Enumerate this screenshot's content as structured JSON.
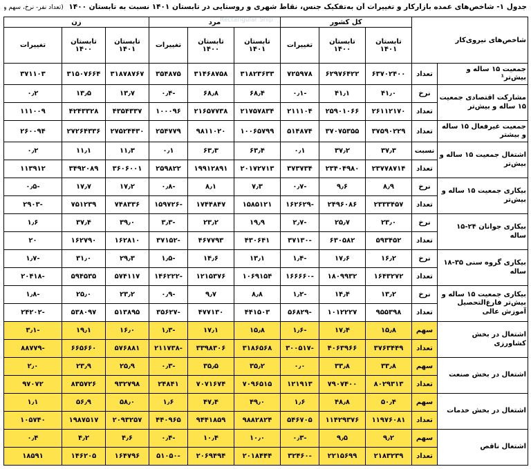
{
  "caption": {
    "title": "جدول ۱- شاخص‌های عمده بازارکار و تغییرات آن به‌تفکیک جنس، نقاط شهری و روستایی در تابستان ۱۴۰۱ نسبت به تابستان ۱۴۰۰",
    "unit": "(تعداد نفر- نرخ، سهم و نسبت: درصد)"
  },
  "watermark": "Rectangular Snip",
  "header": {
    "indicator": "شاخص‌های نیروی‌کار",
    "groups": [
      "کل کشور",
      "مرد",
      "زن"
    ],
    "cols": [
      "تابستان ۱۴۰۱",
      "تابستان ۱۴۰۰",
      "تغییرات"
    ]
  },
  "rows": [
    {
      "label": "جمعیت ۱۵ ساله و بیش‌تر¹",
      "units": [
        "تعداد"
      ],
      "values": [
        [
          "۶۳۷۰۲۴۰۰",
          "۶۲۹۷۶۴۲۲",
          "۷۲۵۹۷۸",
          "۳۱۸۲۳۶۳۳",
          "۳۱۴۶۸۷۵۸",
          "۳۵۴۸۷۵",
          "۳۱۸۷۸۷۶۷",
          "۳۱۵۰۷۶۶۴",
          "۳۷۱۱۰۳"
        ]
      ],
      "hl": false
    },
    {
      "label": "مشارکت اقتصادی جمعیت ۱۵ ساله و بیش‌تر",
      "units": [
        "نرخ",
        "تعداد"
      ],
      "values": [
        [
          "۴۱٫۰",
          "۴۱٫۱",
          "-۰٫۱",
          "۶۸٫۴",
          "۶۸٫۸",
          "-۰٫۴",
          "۱۳٫۷",
          "۱۳٫۵",
          "۰٫۲"
        ],
        [
          "۲۶۱۱۲۱۷۰",
          "۲۵۹۰۱۰۶۶",
          "۲۱۱۱۰۴",
          "۲۱۷۵۷۸۳۴",
          "۲۱۶۵۷۷۳۸",
          "۱۰۰۰۹۶",
          "۴۳۵۴۳۳۷",
          "۴۲۴۳۳۲۸",
          "۱۱۱۰۰۹"
        ]
      ],
      "hl": false
    },
    {
      "label": "جمعیت غیرفعال ۱۵ ساله و بیشتر",
      "units": [
        "تعداد"
      ],
      "values": [
        [
          "۳۷۵۹۰۲۲۹",
          "۳۷۰۷۵۳۵۵",
          "۵۱۴۸۷۴",
          "۱۰۰۶۵۷۹۹",
          "۹۸۱۱۰۲۰",
          "۲۵۴۷۷۹",
          "۲۷۵۲۴۴۳۰",
          "۲۷۲۶۴۳۳۶",
          "۲۶۰۰۹۴"
        ]
      ],
      "hl": false
    },
    {
      "label": "اشتغال جمعیت ۱۵ ساله و بیش‌تر",
      "units": [
        "نسبت",
        "تعداد"
      ],
      "values": [
        [
          "۳۷٫۳",
          "۳۷٫۲",
          "۰٫۱",
          "۶۳٫۴",
          "۶۳٫۳",
          "۰٫۱",
          "۱۱٫۳",
          "۱۱٫۱",
          "۰٫۲"
        ],
        [
          "۲۳۷۷۸۷۱۴",
          "۲۳۴۰۴۹۸۰",
          "۳۷۳۷۳۴",
          "۲۰۱۷۲۷۱۳",
          "۱۹۹۱۲۸۹۱",
          "۲۵۹۸۲۲",
          "۳۶۰۶۰۰۱",
          "۳۴۹۲۰۸۹",
          "۱۱۳۹۱۲"
        ]
      ],
      "hl": false
    },
    {
      "label": "بیکاری جمعیت ۱۵ ساله و بیش‌تر",
      "units": [
        "نرخ",
        "تعداد"
      ],
      "values": [
        [
          "۸٫۹",
          "۹٫۶",
          "-۰٫۷",
          "۷٫۳",
          "۸٫۱",
          "-۰٫۸",
          "۱۷٫۲",
          "۱۷٫۷",
          "-۰٫۵"
        ],
        [
          "۲۳۳۳۴۵۷",
          "۲۴۹۶۰۸۶",
          "-۱۶۲۶۲۹",
          "۱۵۸۵۱۲۱",
          "۱۷۴۴۸۴۷",
          "-۱۵۹۷۲۶",
          "۷۴۸۳۳۶",
          "۷۵۱۲۳۹",
          "-۲۹۰۳"
        ]
      ],
      "hl": false
    },
    {
      "label": "بیکاری جوانان ۲۴-۱۵ ساله",
      "units": [
        "نرخ",
        "تعداد"
      ],
      "values": [
        [
          "۲۳٫۰",
          "۲۵٫۷",
          "-۲٫۷",
          "۱۹٫۹",
          "۲۳٫۲",
          "-۳٫۳",
          "۳۹٫۰",
          "۳۷٫۴",
          "۱٫۶"
        ],
        [
          "۵۹۳۴۵۲",
          "۶۳۰۵۸۲",
          "-۳۷۱۳۰",
          "۴۳۰۶۴۱",
          "۴۶۷۷۹۳",
          "-۳۷۱۵۲",
          "۱۶۲۸۱۰",
          "۱۶۲۷۹۰",
          "۲۰"
        ]
      ],
      "hl": false
    },
    {
      "label": "بیکاری گروه سنی ۳۵-۱۸ ساله",
      "units": [
        "نرخ",
        "تعداد"
      ],
      "values": [
        [
          "۱۶٫۲",
          "۱۷٫۶",
          "-۱٫۴",
          "۱۳٫۱",
          "۱۴٫۶",
          "-۱٫۵",
          "۲۹٫۳",
          "۳۱٫۰",
          "-۱٫۷"
        ],
        [
          "۱۶۴۳۲۷۲",
          "۱۸۰۹۹۳۲",
          "-۱۶۶۶۶۰",
          "۱۰۶۹۱۵۴",
          "۱۲۱۵۳۷۶",
          "-۱۴۶۲۲۲",
          "۵۷۴۱۱۷",
          "۵۹۴۵۳۵",
          "-۲۰۴۱۸"
        ]
      ],
      "hl": false
    },
    {
      "label": "بیکاری جمعیت ۱۵ ساله و بیش‌تر فارغ‌التحصیل آموزش عالی",
      "units": [
        "نرخ",
        "تعداد"
      ],
      "values": [
        [
          "۱۳٫۲",
          "۱۴٫۴",
          "-۱٫۲",
          "۸٫۸",
          "۹٫۷",
          "-۰٫۹",
          "۲۳٫۲",
          "۲۵٫۰",
          "-۱٫۸"
        ],
        [
          "۹۵۵۳۹۸",
          "۱۰۱۲۲۲۷",
          "-۵۶۸۲۹",
          "۴۴۱۵۰۳",
          "۴۷۷۱۳۰",
          "-۳۵۶۲۷",
          "۵۱۳۸۹۵",
          "۵۳۸۰۹۷",
          "-۲۴۲۰۲"
        ]
      ],
      "hl": false
    },
    {
      "label": "اشتغال در بخش کشاورزی",
      "units": [
        "سهم",
        "تعداد"
      ],
      "values": [
        [
          "۱۵٫۸",
          "۱۷٫۴",
          "-۱٫۶",
          "۱۵٫۸",
          "۱۷٫۱",
          "-۱٫۳",
          "۱۶٫۰",
          "۱۹٫۱",
          "-۳٫۱"
        ],
        [
          "۳۷۶۳۴۴۹",
          "۴۰۶۳۹۶۶",
          "-۳۰۰۵۱۷",
          "۳۱۸۶۵۶۸",
          "۳۳۹۸۳۰۶",
          "-۲۱۱۷۳۸",
          "۵۷۶۸۸۱",
          "۶۶۵۶۶۰",
          "-۸۸۷۷۹"
        ]
      ],
      "hl": true
    },
    {
      "label": "اشتغال در بخش صنعت",
      "units": [
        "سهم",
        "تعداد"
      ],
      "values": [
        [
          "۳۳٫۸",
          "۳۳٫۸",
          "۰٫۰",
          "۳۵٫۲",
          "۳۵٫۵",
          "-۰٫۳",
          "۲۵٫۹",
          "۲۳٫۹",
          "۲٫۰"
        ],
        [
          "۸۰۲۹۳۱۳",
          "۷۹۰۷۴۰۰",
          "۱۲۱۹۱۳",
          "۷۰۹۶۵۱۵",
          "۷۰۷۱۶۷۴",
          "۲۴۸۴۱",
          "۹۳۲۷۹۸",
          "۸۳۵۷۲۶",
          "۹۷۰۷۲"
        ]
      ],
      "hl": true
    },
    {
      "label": "اشتغال در بخش خدمات",
      "units": [
        "سهم",
        "تعداد"
      ],
      "values": [
        [
          "۵۰٫۴",
          "۴۸٫۸",
          "۱٫۶",
          "۴۹٫۰",
          "۴۷٫۴",
          "۱٫۶",
          "۵۸٫۰",
          "۵۶٫۹",
          "۱٫۱"
        ],
        [
          "۱۱۹۷۶۰۸۱",
          "۱۱۴۲۹۳۷۶",
          "۵۴۶۷۰۵",
          "۹۸۸۲۸۲۴",
          "۹۴۴۱۸۵۹",
          "۴۴۰۹۶۵",
          "۲۰۹۳۲۵۷",
          "۱۹۸۷۵۱۷",
          "۱۰۵۷۴۰"
        ]
      ],
      "hl": true
    },
    {
      "label": "اشتغال ناقص",
      "units": [
        "سهم",
        "تعداد"
      ],
      "values": [
        [
          "۹٫۲",
          "۹٫۵",
          "-۰٫۳",
          "۱۰٫۰",
          "۱۰٫۴",
          "-۰٫۴",
          "۴٫۶",
          "۴٫۲",
          "۰٫۴"
        ],
        [
          "۲۱۸۳۲۳۹",
          "۲۲۱۵۶۹۹",
          "-۳۲۴۶۰",
          "۲۰۱۸۴۴۴",
          "۲۰۶۹۴۹۴",
          "-۵۱۰۵۰",
          "۱۶۴۷۹۶",
          "۱۴۶۲۰۵",
          "۱۸۵۹۱"
        ]
      ],
      "hl": true
    }
  ]
}
